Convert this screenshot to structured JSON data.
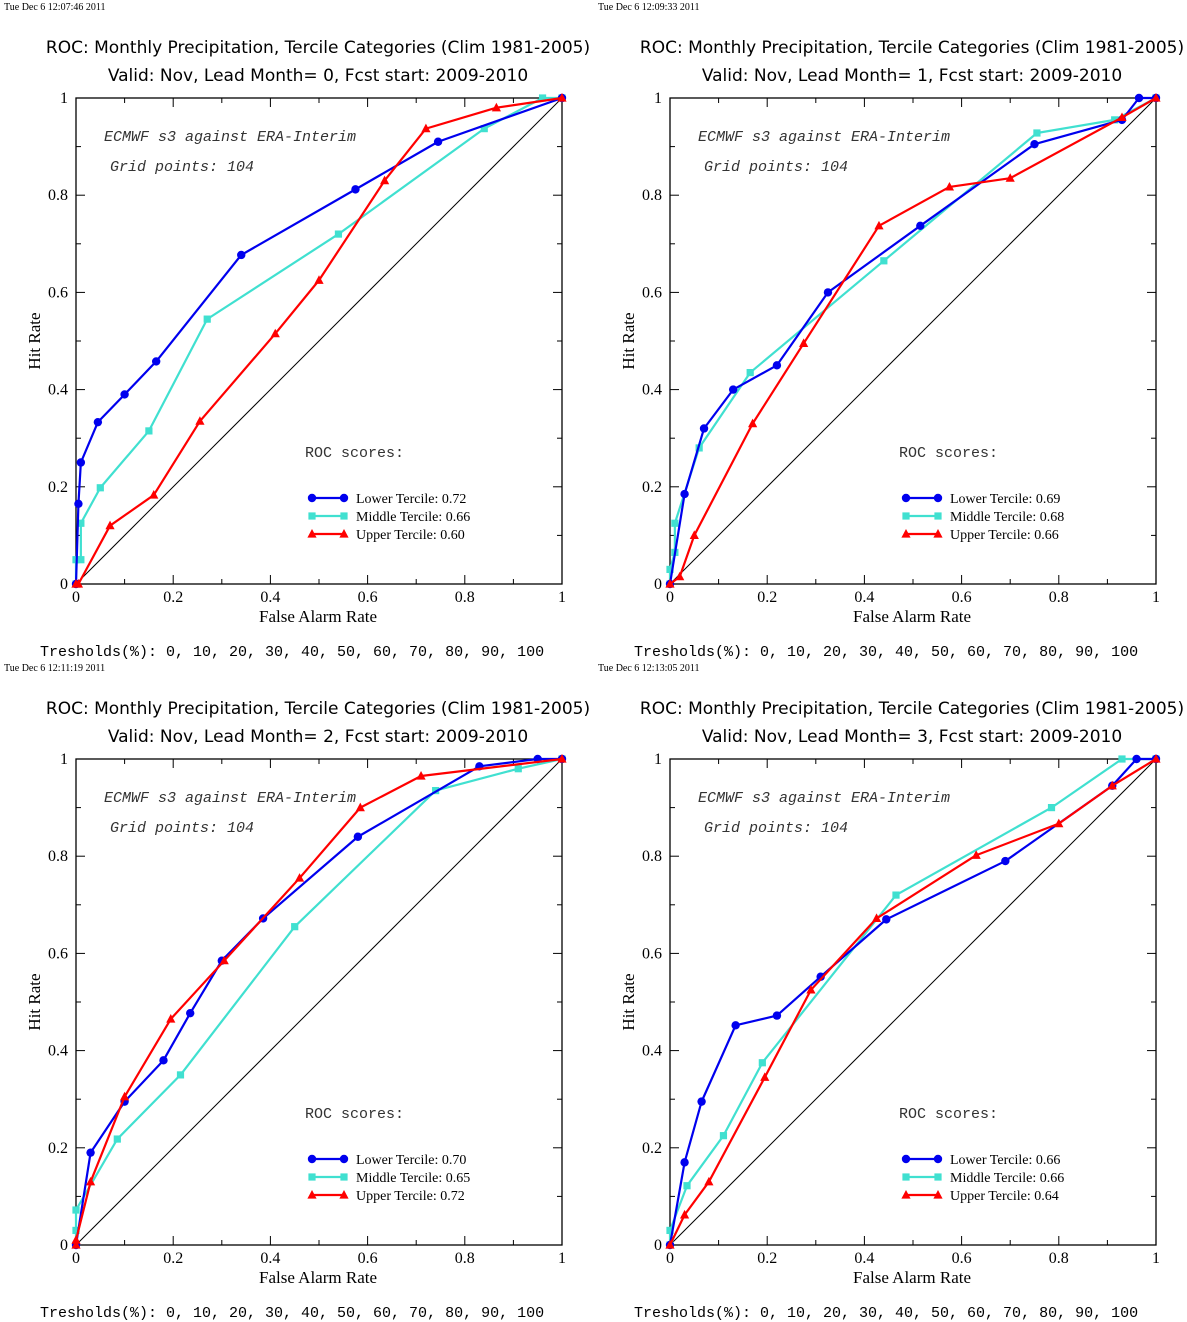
{
  "colors": {
    "lower": "#0000ee",
    "middle": "#40e0d0",
    "upper": "#ff0000",
    "diagonal": "#000000"
  },
  "common": {
    "title": "ROC: Monthly Precipitation, Tercile Categories (Clim 1981-2005)",
    "xlabel": "False Alarm Rate",
    "ylabel": "Hit Rate",
    "annotation1": "ECMWF s3 against ERA-Interim",
    "annotation2": "Grid points:  104",
    "scores_heading": "ROC scores:",
    "thresholds": "Tresholds(%): 0, 10, 20, 30, 40, 50, 60, 70, 80, 90, 100",
    "xticks": [
      "0",
      "0.2",
      "0.4",
      "0.6",
      "0.8",
      "1"
    ],
    "yticks": [
      "0",
      "0.2",
      "0.4",
      "0.6",
      "0.8",
      "1"
    ]
  },
  "chart_data": [
    {
      "type": "line",
      "timestamp": "Tue Dec  6 12:07:46 2011",
      "subtitle": "Valid: Nov, Lead Month= 0, Fcst start: 2009-2010",
      "xlabel": "False Alarm Rate",
      "ylabel": "Hit Rate",
      "xlim": [
        0,
        1
      ],
      "ylim": [
        0,
        1
      ],
      "legend": "bottom-right",
      "grid": false,
      "series": [
        {
          "name": "Lower Tercile: 0.72",
          "marker": "circle",
          "x": [
            0,
            0.005,
            0.01,
            0.045,
            0.1,
            0.165,
            0.34,
            0.575,
            0.745,
            1
          ],
          "y": [
            0,
            0.165,
            0.25,
            0.333,
            0.39,
            0.458,
            0.677,
            0.812,
            0.91,
            1
          ]
        },
        {
          "name": "Middle Tercile: 0.66",
          "marker": "square",
          "x": [
            0,
            0.0,
            0.01,
            0.01,
            0.05,
            0.15,
            0.27,
            0.54,
            0.84,
            0.96,
            1
          ],
          "y": [
            0,
            0.05,
            0.05,
            0.125,
            0.198,
            0.315,
            0.545,
            0.72,
            0.937,
            1.0,
            1
          ]
        },
        {
          "name": "Upper Tercile: 0.60",
          "marker": "triangle",
          "x": [
            0,
            0.005,
            0.07,
            0.16,
            0.255,
            0.41,
            0.5,
            0.635,
            0.72,
            0.865,
            1
          ],
          "y": [
            0,
            0.0,
            0.12,
            0.183,
            0.335,
            0.515,
            0.625,
            0.83,
            0.937,
            0.98,
            1
          ]
        }
      ]
    },
    {
      "type": "line",
      "timestamp": "Tue Dec  6 12:09:33 2011",
      "subtitle": "Valid: Nov, Lead Month= 1, Fcst start: 2009-2010",
      "xlabel": "False Alarm Rate",
      "ylabel": "Hit Rate",
      "xlim": [
        0,
        1
      ],
      "ylim": [
        0,
        1
      ],
      "legend": "bottom-right",
      "grid": false,
      "series": [
        {
          "name": "Lower Tercile: 0.69",
          "marker": "circle",
          "x": [
            0,
            0.03,
            0.07,
            0.13,
            0.22,
            0.325,
            0.515,
            0.75,
            0.93,
            0.965,
            1
          ],
          "y": [
            0,
            0.185,
            0.32,
            0.4,
            0.45,
            0.6,
            0.737,
            0.905,
            0.955,
            1.0,
            1
          ]
        },
        {
          "name": "Middle Tercile: 0.68",
          "marker": "square",
          "x": [
            0,
            0.0,
            0.01,
            0.01,
            0.06,
            0.165,
            0.44,
            0.755,
            0.915,
            1
          ],
          "y": [
            0,
            0.03,
            0.065,
            0.125,
            0.28,
            0.435,
            0.665,
            0.928,
            0.955,
            1
          ]
        },
        {
          "name": "Upper Tercile: 0.66",
          "marker": "triangle",
          "x": [
            0,
            0.02,
            0.05,
            0.17,
            0.275,
            0.43,
            0.575,
            0.7,
            0.93,
            1
          ],
          "y": [
            0,
            0.015,
            0.1,
            0.33,
            0.495,
            0.737,
            0.817,
            0.835,
            0.96,
            1
          ]
        }
      ]
    },
    {
      "type": "line",
      "timestamp": "Tue Dec  6 12:11:19 2011",
      "subtitle": "Valid: Nov, Lead Month= 2, Fcst start: 2009-2010",
      "xlabel": "False Alarm Rate",
      "ylabel": "Hit Rate",
      "xlim": [
        0,
        1
      ],
      "ylim": [
        0,
        1
      ],
      "legend": "bottom-right",
      "grid": false,
      "series": [
        {
          "name": "Lower Tercile: 0.70",
          "marker": "circle",
          "x": [
            0,
            0.03,
            0.1,
            0.18,
            0.235,
            0.3,
            0.385,
            0.58,
            0.83,
            0.95,
            1
          ],
          "y": [
            0,
            0.19,
            0.295,
            0.38,
            0.477,
            0.585,
            0.672,
            0.84,
            0.985,
            1.0,
            1
          ]
        },
        {
          "name": "Middle Tercile: 0.65",
          "marker": "square",
          "x": [
            0,
            0.0,
            0.0,
            0.085,
            0.215,
            0.45,
            0.74,
            0.91,
            1
          ],
          "y": [
            0,
            0.03,
            0.072,
            0.218,
            0.35,
            0.655,
            0.935,
            0.98,
            1
          ]
        },
        {
          "name": "Upper Tercile: 0.72",
          "marker": "triangle",
          "x": [
            0,
            0.0,
            0.03,
            0.1,
            0.195,
            0.305,
            0.46,
            0.585,
            0.71,
            1
          ],
          "y": [
            0,
            0.01,
            0.13,
            0.305,
            0.465,
            0.585,
            0.755,
            0.9,
            0.965,
            1
          ]
        }
      ]
    },
    {
      "type": "line",
      "timestamp": "Tue Dec  6 12:13:05 2011",
      "subtitle": "Valid: Nov, Lead Month= 3, Fcst start: 2009-2010",
      "xlabel": "False Alarm Rate",
      "ylabel": "Hit Rate",
      "xlim": [
        0,
        1
      ],
      "ylim": [
        0,
        1
      ],
      "legend": "bottom-right",
      "grid": false,
      "series": [
        {
          "name": "Lower Tercile: 0.66",
          "marker": "circle",
          "x": [
            0,
            0.03,
            0.065,
            0.135,
            0.22,
            0.31,
            0.445,
            0.69,
            0.91,
            0.96,
            1
          ],
          "y": [
            0,
            0.17,
            0.295,
            0.452,
            0.472,
            0.552,
            0.67,
            0.79,
            0.945,
            1.0,
            1
          ]
        },
        {
          "name": "Middle Tercile: 0.66",
          "marker": "square",
          "x": [
            0,
            0.0,
            0.035,
            0.11,
            0.19,
            0.465,
            0.785,
            0.93,
            1
          ],
          "y": [
            0,
            0.03,
            0.122,
            0.225,
            0.375,
            0.72,
            0.9,
            1.0,
            1
          ]
        },
        {
          "name": "Upper Tercile: 0.64",
          "marker": "triangle",
          "x": [
            0,
            0.03,
            0.08,
            0.195,
            0.29,
            0.425,
            0.63,
            0.8,
            0.91,
            1
          ],
          "y": [
            0,
            0.062,
            0.13,
            0.345,
            0.525,
            0.672,
            0.802,
            0.867,
            0.945,
            1
          ]
        }
      ]
    }
  ]
}
